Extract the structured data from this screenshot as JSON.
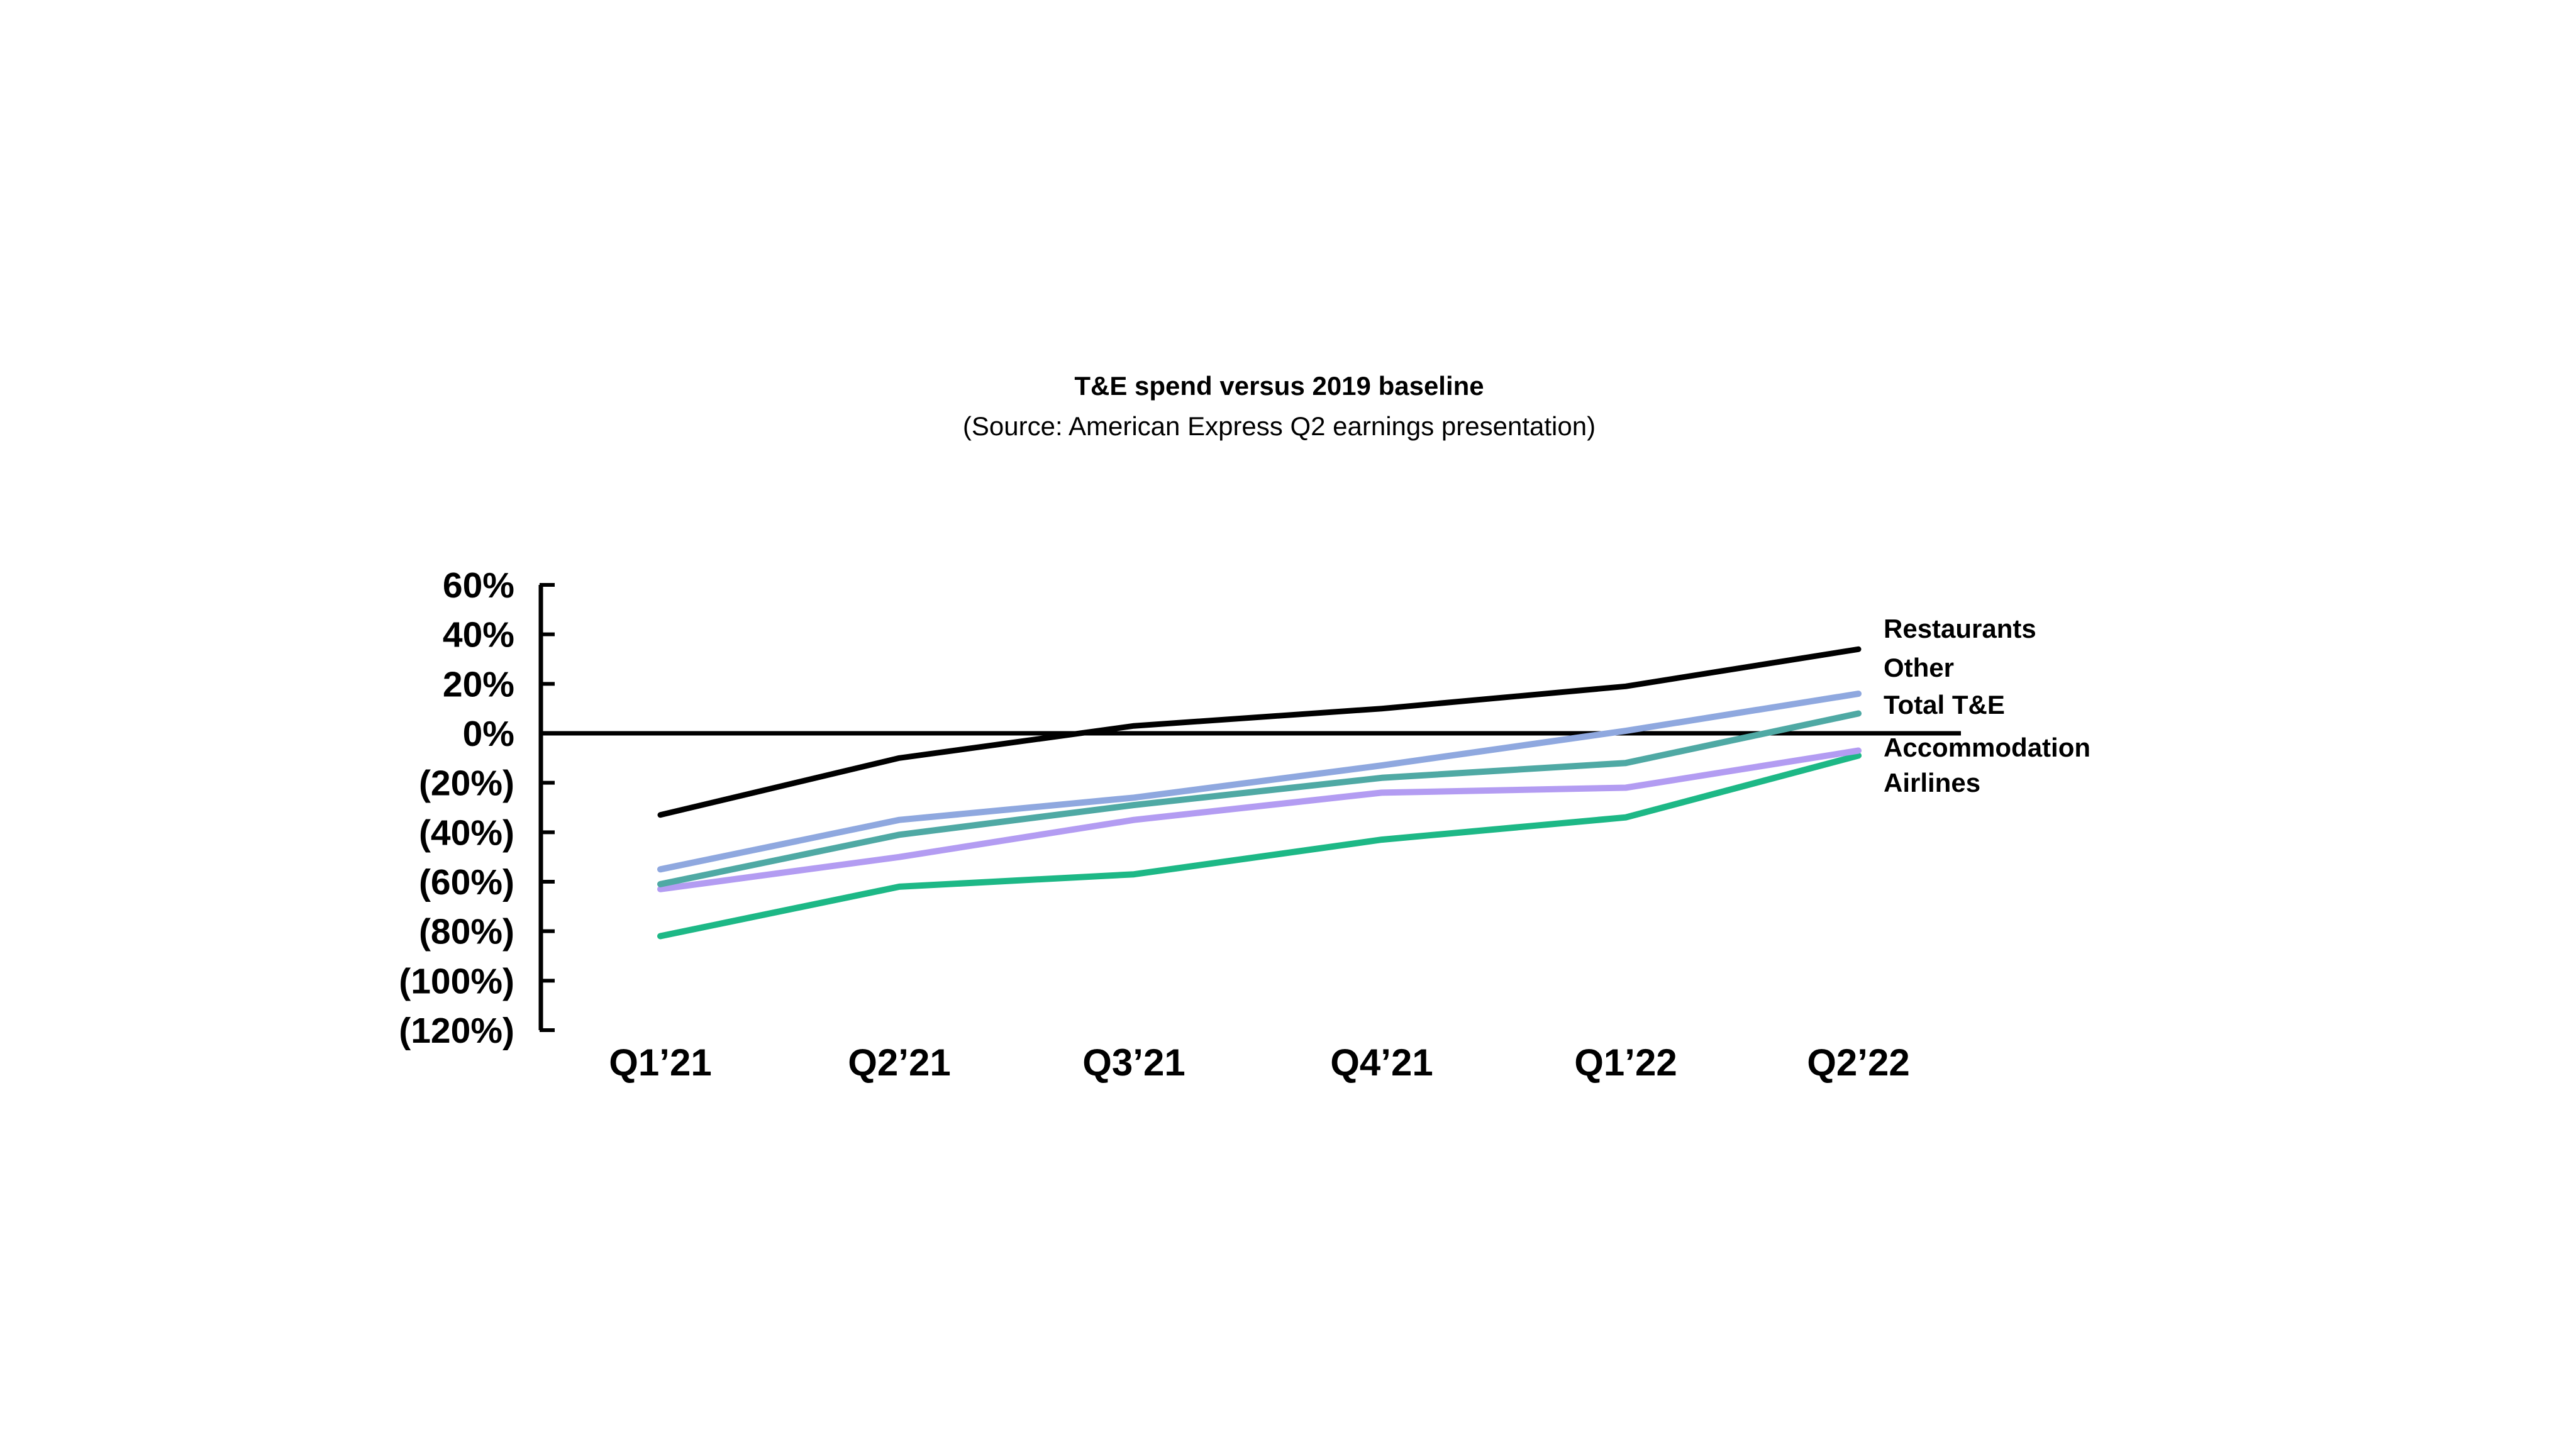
{
  "chart_data": {
    "type": "line",
    "title": "T&E spend versus 2019 baseline",
    "subtitle": "(Source: American Express Q2 earnings presentation)",
    "categories": [
      "Q1’21",
      "Q2’21",
      "Q3’21",
      "Q4’21",
      "Q1’22",
      "Q2’22"
    ],
    "y_tick_labels": [
      "60%",
      "40%",
      "20%",
      "0%",
      "(20%)",
      "(40%)",
      "(60%)",
      "(80%)",
      "(100%)",
      "(120%)"
    ],
    "y_tick_values": [
      60,
      40,
      20,
      0,
      -20,
      -40,
      -60,
      -80,
      -100,
      -120
    ],
    "ylim": [
      -120,
      60
    ],
    "baseline": 0,
    "grid": false,
    "legend": "inline-right",
    "series": [
      {
        "name": "Restaurants",
        "color": "#000000",
        "values": [
          -33,
          -10,
          3,
          10,
          19,
          34
        ]
      },
      {
        "name": "Other",
        "color": "#8fa8df",
        "values": [
          -55,
          -35,
          -26,
          -13,
          1,
          16
        ]
      },
      {
        "name": "Total T&E",
        "color": "#4fa9a4",
        "values": [
          -61,
          -41,
          -29,
          -18,
          -12,
          8
        ]
      },
      {
        "name": "Accommodation",
        "color": "#b39cf2",
        "values": [
          -63,
          -50,
          -35,
          -24,
          -22,
          -7
        ]
      },
      {
        "name": "Airlines",
        "color": "#1db886",
        "values": [
          -82,
          -62,
          -57,
          -43,
          -34,
          -9
        ]
      }
    ]
  }
}
